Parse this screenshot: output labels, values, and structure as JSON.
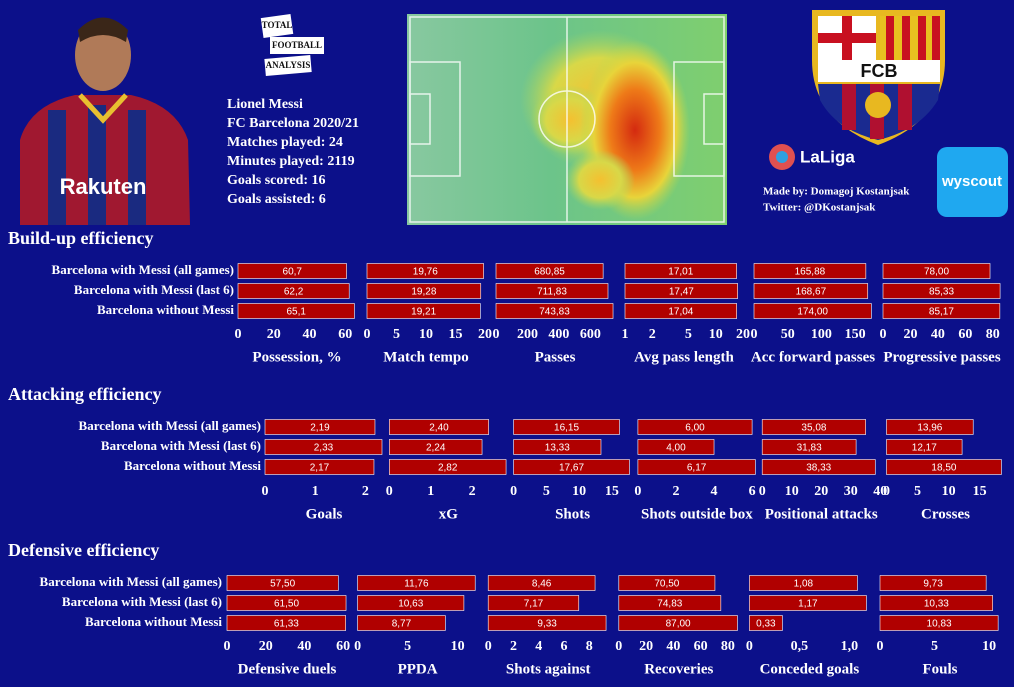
{
  "header": {
    "logo_lines": [
      "TOTAL",
      "FOOTBALL",
      "ANALYSIS"
    ],
    "player_info": [
      "Lionel Messi",
      "FC Barcelona 2020/21",
      "Matches played: 24",
      "Minutes played: 2119",
      "Goals scored: 16",
      "Goals assisted: 6"
    ],
    "club_logo": "FCB",
    "league_logo": "LaLiga",
    "credits": [
      "Made by: Domagoj Kostanjsak",
      "Twitter: @DKostanjsak"
    ],
    "provider_logo": "wyscout",
    "shirt_sponsor": "Rakuten"
  },
  "chart_data": [
    {
      "type": "hbar",
      "title": "Build-up efficiency",
      "color": "#b00000",
      "categories": [
        "Barcelona with Messi (all games)",
        "Barcelona with Messi (last 6)",
        "Barcelona without Messi"
      ],
      "panels": [
        {
          "x_label": "Possession, %",
          "values": [
            60.7,
            62.2,
            65.1
          ],
          "value_labels": [
            "60,7",
            "62,2",
            "65,1"
          ],
          "xlim": [
            0,
            66
          ],
          "xticks": [
            0,
            20,
            40,
            60
          ]
        },
        {
          "x_label": "Match tempo",
          "values": [
            19.76,
            19.28,
            19.21
          ],
          "value_labels": [
            "19,76",
            "19,28",
            "19,21"
          ],
          "xlim": [
            0,
            20
          ],
          "xticks": [
            0,
            5,
            10,
            15,
            20
          ]
        },
        {
          "x_label": "Passes",
          "values": [
            680.85,
            711.83,
            743.83
          ],
          "value_labels": [
            "680,85",
            "711,83",
            "743,83"
          ],
          "xlim": [
            0,
            750
          ],
          "xticks": [
            0,
            200,
            400,
            600
          ]
        },
        {
          "x_label": "Avg pass length",
          "values": [
            17.01,
            17.47,
            17.04
          ],
          "value_labels": [
            "17,01",
            "17,47",
            "17,04"
          ],
          "xlim": [
            1,
            20
          ],
          "xticks": [
            1,
            2,
            5,
            10,
            20
          ],
          "log_scale": true
        },
        {
          "x_label": "Acc forward passes",
          "values": [
            165.88,
            168.67,
            174.0
          ],
          "value_labels": [
            "165,88",
            "168,67",
            "174,00"
          ],
          "xlim": [
            0,
            175
          ],
          "xticks": [
            0,
            50,
            100,
            150
          ]
        },
        {
          "x_label": "Progressive passes",
          "values": [
            78.0,
            85.33,
            85.17
          ],
          "value_labels": [
            "78,00",
            "85,33",
            "85,17"
          ],
          "xlim": [
            0,
            86
          ],
          "xticks": [
            0,
            20,
            40,
            60,
            80
          ]
        }
      ]
    },
    {
      "type": "hbar",
      "title": "Attacking efficiency",
      "color": "#b00000",
      "categories": [
        "Barcelona with Messi (all games)",
        "Barcelona with Messi (last 6)",
        "Barcelona without Messi"
      ],
      "panels": [
        {
          "x_label": "Goals",
          "values": [
            2.19,
            2.33,
            2.17
          ],
          "value_labels": [
            "2,19",
            "2,33",
            "2,17"
          ],
          "xlim": [
            0,
            2.35
          ],
          "xticks": [
            0,
            1,
            2
          ]
        },
        {
          "x_label": "xG",
          "values": [
            2.4,
            2.24,
            2.82
          ],
          "value_labels": [
            "2,40",
            "2,24",
            "2,82"
          ],
          "xlim": [
            0,
            2.85
          ],
          "xticks": [
            0,
            1,
            2
          ]
        },
        {
          "x_label": "Shots",
          "values": [
            16.15,
            13.33,
            17.67
          ],
          "value_labels": [
            "16,15",
            "13,33",
            "17,67"
          ],
          "xlim": [
            0,
            18
          ],
          "xticks": [
            0,
            5,
            10,
            15
          ]
        },
        {
          "x_label": "Shots outside box",
          "values": [
            6.0,
            4.0,
            6.17
          ],
          "value_labels": [
            "6,00",
            "4,00",
            "6,17"
          ],
          "xlim": [
            0,
            6.2
          ],
          "xticks": [
            0,
            2,
            4,
            6
          ]
        },
        {
          "x_label": "Positional attacks",
          "values": [
            35.08,
            31.83,
            38.33
          ],
          "value_labels": [
            "35,08",
            "31,83",
            "38,33"
          ],
          "xlim": [
            0,
            40
          ],
          "xticks": [
            0,
            10,
            20,
            30,
            40
          ]
        },
        {
          "x_label": "Crosses",
          "values": [
            13.96,
            12.17,
            18.5
          ],
          "value_labels": [
            "13,96",
            "12,17",
            "18,50"
          ],
          "xlim": [
            0,
            19
          ],
          "xticks": [
            0,
            5,
            10,
            15
          ]
        }
      ]
    },
    {
      "type": "hbar",
      "title": "Defensive efficiency",
      "color": "#b00000",
      "categories": [
        "Barcelona with Messi (all games)",
        "Barcelona with Messi (last 6)",
        "Barcelona without Messi"
      ],
      "panels": [
        {
          "x_label": "Defensive duels",
          "values": [
            57.5,
            61.5,
            61.33
          ],
          "value_labels": [
            "57,50",
            "61,50",
            "61,33"
          ],
          "xlim": [
            0,
            62
          ],
          "xticks": [
            0,
            20,
            40,
            60
          ]
        },
        {
          "x_label": "PPDA",
          "values": [
            11.76,
            10.63,
            8.77
          ],
          "value_labels": [
            "11,76",
            "10,63",
            "8,77"
          ],
          "xlim": [
            0,
            12
          ],
          "xticks": [
            0,
            5,
            10
          ]
        },
        {
          "x_label": "Shots against",
          "values": [
            8.46,
            7.17,
            9.33
          ],
          "value_labels": [
            "8,46",
            "7,17",
            "9,33"
          ],
          "xlim": [
            0,
            9.5
          ],
          "xticks": [
            0,
            2,
            4,
            6,
            8
          ]
        },
        {
          "x_label": "Recoveries",
          "values": [
            70.5,
            74.83,
            87.0
          ],
          "value_labels": [
            "70,50",
            "74,83",
            "87,00"
          ],
          "xlim": [
            0,
            88
          ],
          "xticks": [
            0,
            20,
            40,
            60,
            80
          ]
        },
        {
          "x_label": "Conceded goals",
          "values": [
            1.08,
            1.17,
            0.33
          ],
          "value_labels": [
            "1,08",
            "1,17",
            "0,33"
          ],
          "xlim": [
            0,
            1.2
          ],
          "xticks": [
            0,
            {
              "value": 0.5,
              "label": "0,5"
            },
            {
              "value": 1,
              "label": "1,0"
            }
          ]
        },
        {
          "x_label": "Fouls",
          "values": [
            9.73,
            10.33,
            10.83
          ],
          "value_labels": [
            "9,73",
            "10,33",
            "10,83"
          ],
          "xlim": [
            0,
            11
          ],
          "xticks": [
            0,
            5,
            10
          ]
        }
      ]
    }
  ]
}
